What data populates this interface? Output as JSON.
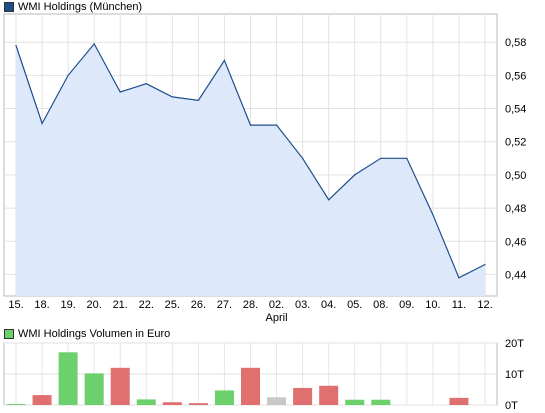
{
  "chart_data": [
    {
      "type": "area",
      "title": "WMI Holdings (München)",
      "x": [
        "15.",
        "18.",
        "19.",
        "20.",
        "21.",
        "22.",
        "25.",
        "26.",
        "27.",
        "28.",
        "02.",
        "03.",
        "04.",
        "05.",
        "08.",
        "09.",
        "10.",
        "11.",
        "12."
      ],
      "month_label": "April",
      "month_label_at": "02.",
      "series": [
        {
          "values": [
            0.578,
            0.531,
            0.56,
            0.579,
            0.55,
            0.555,
            0.547,
            0.545,
            0.569,
            0.53,
            0.53,
            0.51,
            0.485,
            0.5,
            0.51,
            0.51,
            0.476,
            0.438,
            0.446
          ]
        }
      ],
      "yticks": [
        0.44,
        0.46,
        0.48,
        0.5,
        0.52,
        0.54,
        0.56,
        0.58
      ],
      "ytick_labels": [
        "0,44",
        "0,46",
        "0,48",
        "0,50",
        "0,52",
        "0,54",
        "0,56",
        "0,58"
      ],
      "ylim": [
        0.427,
        0.597
      ],
      "grid": true,
      "line_color": "#1f4e8c",
      "fill_color": "#dde9fa",
      "legend_color": "#1f4e8c"
    },
    {
      "type": "bar",
      "title": "WMI Holdings Volumen in Euro",
      "x": [
        "15.",
        "18.",
        "19.",
        "20.",
        "21.",
        "22.",
        "25.",
        "26.",
        "27.",
        "28.",
        "02.",
        "03.",
        "04.",
        "05.",
        "08.",
        "09.",
        "10.",
        "11.",
        "12."
      ],
      "values": [
        300,
        3200,
        17000,
        10200,
        12000,
        1800,
        900,
        600,
        4700,
        12000,
        2500,
        5500,
        6200,
        1700,
        1700,
        0,
        0,
        2300,
        0
      ],
      "bar_colors": [
        "#6cd06c",
        "#e07070",
        "#6cd06c",
        "#6cd06c",
        "#e07070",
        "#6cd06c",
        "#e07070",
        "#e07070",
        "#6cd06c",
        "#e07070",
        "#c8c8c8",
        "#e07070",
        "#e07070",
        "#6cd06c",
        "#6cd06c",
        "#ffffff",
        "#ffffff",
        "#e07070",
        "#ffffff"
      ],
      "yticks": [
        0,
        10000,
        20000
      ],
      "ytick_labels": [
        "0T",
        "10T",
        "20T"
      ],
      "ylim": [
        0,
        20000
      ],
      "grid": true,
      "legend_color": "#6cd06c"
    }
  ]
}
